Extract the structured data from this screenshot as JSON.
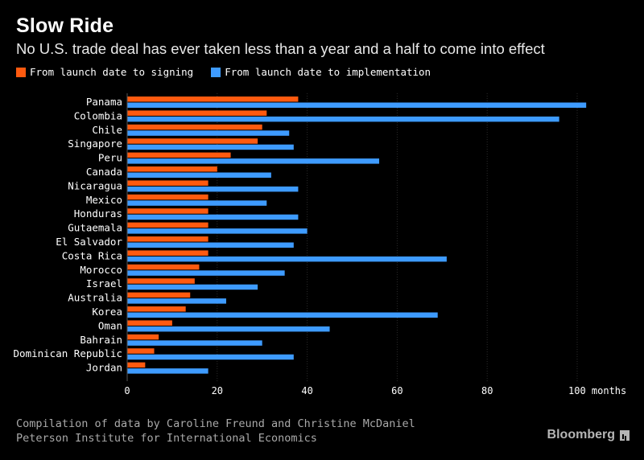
{
  "header": {
    "title": "Slow Ride",
    "subtitle": "No U.S. trade deal has ever taken less than a year and a half to come into effect"
  },
  "legend": {
    "signing": "From launch date to signing",
    "implementation": "From launch date to implementation"
  },
  "colors": {
    "signing": "#ff5a0f",
    "implementation": "#3e9bff",
    "background": "#000000",
    "grid": "#2b2b2b"
  },
  "footer": {
    "line1": "Compilation of data by Caroline Freund and Christine McDaniel",
    "line2": "Peterson Institute for International Economics",
    "brand": "Bloomberg"
  },
  "chart_data": {
    "type": "bar",
    "orientation": "horizontal",
    "categories": [
      "Panama",
      "Colombia",
      "Chile",
      "Singapore",
      "Peru",
      "Canada",
      "Nicaragua",
      "Mexico",
      "Honduras",
      "Gutaemala",
      "El Salvador",
      "Costa Rica",
      "Morocco",
      "Israel",
      "Australia",
      "Korea",
      "Oman",
      "Bahrain",
      "Dominican Republic",
      "Jordan"
    ],
    "series": [
      {
        "name": "From launch date to signing",
        "values": [
          38,
          31,
          30,
          29,
          23,
          20,
          18,
          18,
          18,
          18,
          18,
          18,
          16,
          15,
          14,
          13,
          10,
          7,
          6,
          4
        ]
      },
      {
        "name": "From launch date to implementation",
        "values": [
          102,
          96,
          36,
          37,
          56,
          32,
          38,
          31,
          38,
          40,
          37,
          71,
          35,
          29,
          22,
          69,
          45,
          30,
          37,
          18
        ]
      }
    ],
    "xlim": [
      0,
      105
    ],
    "xticks": [
      "0",
      "20",
      "40",
      "60",
      "80",
      "100 months"
    ],
    "xtick_values": [
      0,
      20,
      40,
      60,
      80,
      100
    ],
    "grid": true,
    "legend_position": "top-left"
  }
}
